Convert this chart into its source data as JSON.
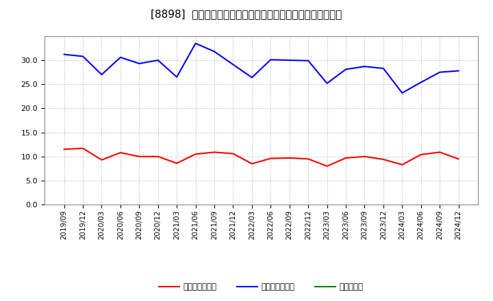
{
  "title": "[8898]  売上債権回転率、買入債務回転率、在庫回転率の推移",
  "x_labels": [
    "2019/09",
    "2019/12",
    "2020/03",
    "2020/06",
    "2020/09",
    "2020/12",
    "2021/03",
    "2021/06",
    "2021/09",
    "2021/12",
    "2022/03",
    "2022/06",
    "2022/09",
    "2022/12",
    "2023/03",
    "2023/06",
    "2023/09",
    "2023/12",
    "2024/03",
    "2024/06",
    "2024/09",
    "2024/12"
  ],
  "receivables": [
    11.5,
    11.7,
    9.3,
    10.8,
    10.0,
    10.0,
    8.6,
    10.5,
    10.9,
    10.6,
    8.5,
    9.6,
    9.7,
    9.5,
    8.0,
    9.7,
    10.0,
    9.4,
    8.3,
    10.4,
    10.9,
    9.5
  ],
  "payables": [
    31.2,
    30.8,
    27.0,
    30.6,
    29.3,
    30.0,
    26.5,
    33.5,
    31.8,
    29.1,
    26.4,
    30.1,
    30.0,
    29.9,
    25.2,
    28.1,
    28.7,
    28.3,
    23.2,
    25.4,
    27.5,
    27.8
  ],
  "inventory": [
    null,
    null,
    null,
    null,
    null,
    null,
    null,
    null,
    null,
    null,
    null,
    null,
    null,
    null,
    null,
    null,
    null,
    null,
    null,
    null,
    null,
    null
  ],
  "receivables_color": "#ff0000",
  "payables_color": "#0000ff",
  "inventory_color": "#008000",
  "ylim": [
    0,
    35
  ],
  "yticks": [
    0.0,
    5.0,
    10.0,
    15.0,
    20.0,
    25.0,
    30.0
  ],
  "legend_receivables": "売上債権回転率",
  "legend_payables": "買入債務回転率",
  "legend_inventory": "在庫回転率",
  "bg_color": "#ffffff",
  "plot_bg_color": "#ffffff",
  "grid_color": "#aaaaaa",
  "title_fontsize": 11,
  "tick_fontsize": 7.5,
  "ytick_fontsize": 8
}
